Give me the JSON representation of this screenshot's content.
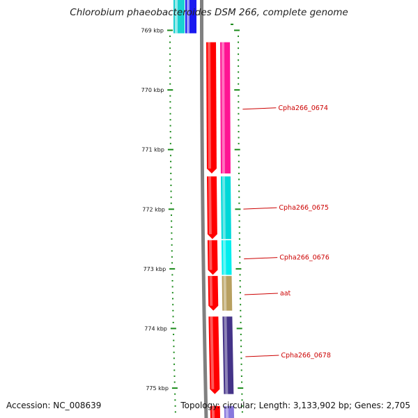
{
  "title": "Chlorobium phaeobacteroides DSM 266, complete genome",
  "footer": {
    "accession": "Accession: NC_008639",
    "summary": "Topology: circular; Length: 3,133,902 bp; Genes: 2,705"
  },
  "scale": {
    "unit": "kbp",
    "major_ticks": [
      "769 kbp",
      "770 kbp",
      "771 kbp",
      "772 kbp",
      "773 kbp",
      "774 kbp",
      "775 kbp"
    ]
  },
  "colors": {
    "backbone": "#808080",
    "tick": "#1a8a1a",
    "label": "#cc0000",
    "strand_arrow": "#ff0000"
  },
  "genes": [
    {
      "name": "",
      "start_kbp": 768.45,
      "end_kbp": 769.05,
      "color": "#00cccc"
    },
    {
      "name": "",
      "start_kbp": 768.45,
      "end_kbp": 769.05,
      "color": "#0000ee"
    },
    {
      "name": "Cpha266_0674",
      "start_kbp": 769.2,
      "end_kbp": 771.4,
      "color": "#ff1493"
    },
    {
      "name": "Cpha266_0675",
      "start_kbp": 771.45,
      "end_kbp": 772.5,
      "color": "#00d8d8"
    },
    {
      "name": "Cpha266_0676",
      "start_kbp": 772.52,
      "end_kbp": 773.1,
      "color": "#00eeee"
    },
    {
      "name": "aat",
      "start_kbp": 773.12,
      "end_kbp": 773.7,
      "color": "#b8a060"
    },
    {
      "name": "Cpha266_0678",
      "start_kbp": 773.8,
      "end_kbp": 775.1,
      "color": "#443388"
    },
    {
      "name": "",
      "start_kbp": 775.3,
      "end_kbp": 775.6,
      "color": "#8877dd"
    }
  ]
}
